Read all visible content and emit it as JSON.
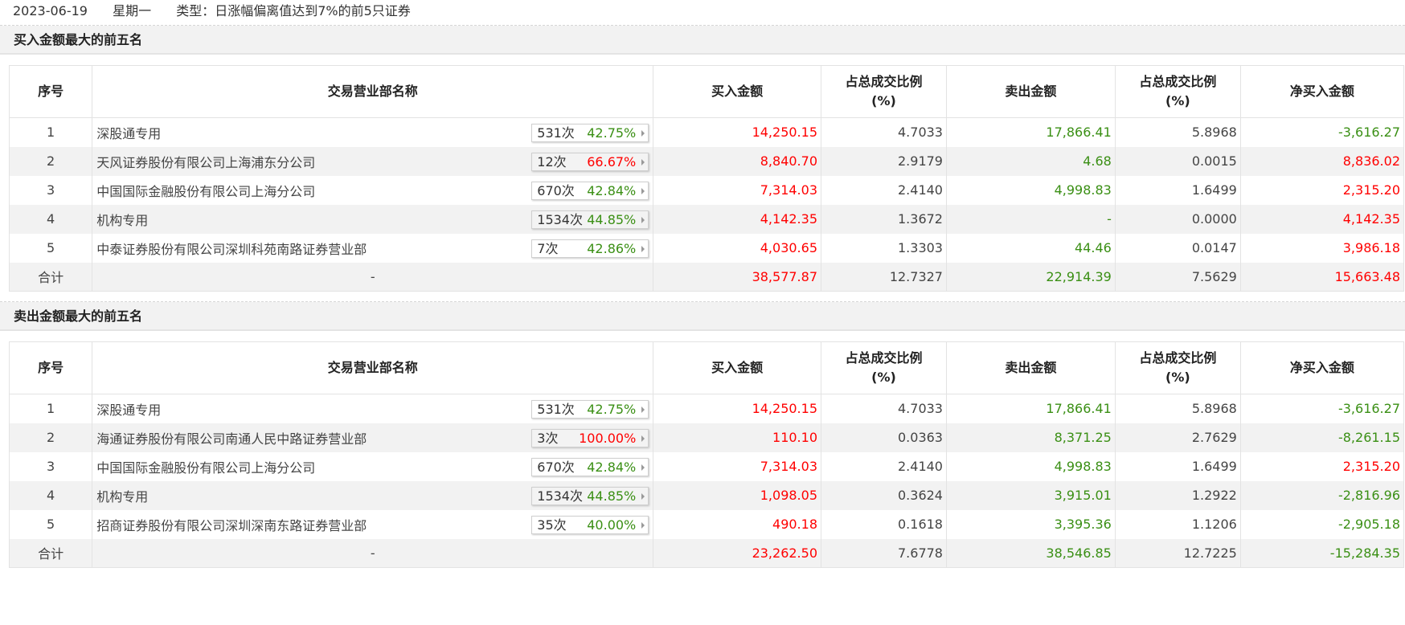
{
  "header": {
    "date": "2023-06-19",
    "weekday": "星期一",
    "type_label": "类型：日涨幅偏离值达到7%的前5只证券"
  },
  "columns": {
    "seq": "序号",
    "dept": "交易营业部名称",
    "buy": "买入金额",
    "buy_pct_l1": "占总成交比例",
    "buy_pct_l2": "(%)",
    "sell": "卖出金额",
    "sell_pct_l1": "占总成交比例",
    "sell_pct_l2": "(%)",
    "net": "净买入金额"
  },
  "colors": {
    "up": "#ff0000",
    "down": "#3a8f14",
    "text": "#444444"
  },
  "buy_top5": {
    "title": "买入金额最大的前五名",
    "rows": [
      {
        "seq": "1",
        "name": "深股通专用",
        "count": "531次",
        "rate": "42.75%",
        "rate_color": "green",
        "buy": "14,250.15",
        "buy_pct": "4.7033",
        "sell": "17,866.41",
        "sell_pct": "5.8968",
        "net": "-3,616.27",
        "net_color": "green"
      },
      {
        "seq": "2",
        "name": "天风证券股份有限公司上海浦东分公司",
        "count": "12次",
        "rate": "66.67%",
        "rate_color": "red",
        "buy": "8,840.70",
        "buy_pct": "2.9179",
        "sell": "4.68",
        "sell_pct": "0.0015",
        "net": "8,836.02",
        "net_color": "red"
      },
      {
        "seq": "3",
        "name": "中国国际金融股份有限公司上海分公司",
        "count": "670次",
        "rate": "42.84%",
        "rate_color": "green",
        "buy": "7,314.03",
        "buy_pct": "2.4140",
        "sell": "4,998.83",
        "sell_pct": "1.6499",
        "net": "2,315.20",
        "net_color": "red"
      },
      {
        "seq": "4",
        "name": "机构专用",
        "count": "1534次",
        "rate": "44.85%",
        "rate_color": "green",
        "buy": "4,142.35",
        "buy_pct": "1.3672",
        "sell": "-",
        "sell_pct": "0.0000",
        "net": "4,142.35",
        "net_color": "red"
      },
      {
        "seq": "5",
        "name": "中泰证券股份有限公司深圳科苑南路证券营业部",
        "count": "7次",
        "rate": "42.86%",
        "rate_color": "green",
        "buy": "4,030.65",
        "buy_pct": "1.3303",
        "sell": "44.46",
        "sell_pct": "0.0147",
        "net": "3,986.18",
        "net_color": "red"
      }
    ],
    "total": {
      "label": "合计",
      "name": "-",
      "buy": "38,577.87",
      "buy_pct": "12.7327",
      "sell": "22,914.39",
      "sell_pct": "7.5629",
      "net": "15,663.48",
      "net_color": "red"
    }
  },
  "sell_top5": {
    "title": "卖出金额最大的前五名",
    "rows": [
      {
        "seq": "1",
        "name": "深股通专用",
        "count": "531次",
        "rate": "42.75%",
        "rate_color": "green",
        "buy": "14,250.15",
        "buy_pct": "4.7033",
        "sell": "17,866.41",
        "sell_pct": "5.8968",
        "net": "-3,616.27",
        "net_color": "green"
      },
      {
        "seq": "2",
        "name": "海通证券股份有限公司南通人民中路证券营业部",
        "count": "3次",
        "rate": "100.00%",
        "rate_color": "red",
        "buy": "110.10",
        "buy_pct": "0.0363",
        "sell": "8,371.25",
        "sell_pct": "2.7629",
        "net": "-8,261.15",
        "net_color": "green"
      },
      {
        "seq": "3",
        "name": "中国国际金融股份有限公司上海分公司",
        "count": "670次",
        "rate": "42.84%",
        "rate_color": "green",
        "buy": "7,314.03",
        "buy_pct": "2.4140",
        "sell": "4,998.83",
        "sell_pct": "1.6499",
        "net": "2,315.20",
        "net_color": "red"
      },
      {
        "seq": "4",
        "name": "机构专用",
        "count": "1534次",
        "rate": "44.85%",
        "rate_color": "green",
        "buy": "1,098.05",
        "buy_pct": "0.3624",
        "sell": "3,915.01",
        "sell_pct": "1.2922",
        "net": "-2,816.96",
        "net_color": "green"
      },
      {
        "seq": "5",
        "name": "招商证券股份有限公司深圳深南东路证券营业部",
        "count": "35次",
        "rate": "40.00%",
        "rate_color": "green",
        "buy": "490.18",
        "buy_pct": "0.1618",
        "sell": "3,395.36",
        "sell_pct": "1.1206",
        "net": "-2,905.18",
        "net_color": "green"
      }
    ],
    "total": {
      "label": "合计",
      "name": "-",
      "buy": "23,262.50",
      "buy_pct": "7.6778",
      "sell": "38,546.85",
      "sell_pct": "12.7225",
      "net": "-15,284.35",
      "net_color": "green"
    }
  }
}
